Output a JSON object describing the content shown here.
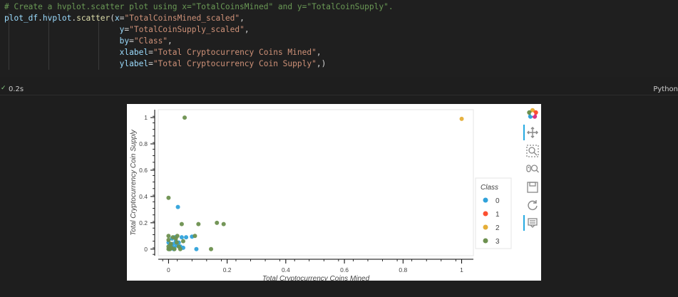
{
  "code": {
    "lines": [
      [
        {
          "t": "# Create a hvplot.scatter plot using x=\"TotalCoinsMined\" and y=\"TotalCoinSupply\".",
          "c": "comment"
        }
      ],
      [
        {
          "t": "plot_df",
          "c": "ident"
        },
        {
          "t": ".",
          "c": "punc"
        },
        {
          "t": "hvplot",
          "c": "ident"
        },
        {
          "t": ".",
          "c": "punc"
        },
        {
          "t": "scatter",
          "c": "fn"
        },
        {
          "t": "(",
          "c": "punc"
        },
        {
          "t": "x",
          "c": "kw"
        },
        {
          "t": "=",
          "c": "punc"
        },
        {
          "t": "\"TotalCoinsMined_scaled\"",
          "c": "str"
        },
        {
          "t": ",",
          "c": "punc"
        }
      ],
      [
        {
          "t": "                        ",
          "c": "punc"
        },
        {
          "t": "y",
          "c": "kw"
        },
        {
          "t": "=",
          "c": "punc"
        },
        {
          "t": "\"TotalCoinSupply_scaled\"",
          "c": "str"
        },
        {
          "t": ",",
          "c": "punc"
        }
      ],
      [
        {
          "t": "                        ",
          "c": "punc"
        },
        {
          "t": "by",
          "c": "kw"
        },
        {
          "t": "=",
          "c": "punc"
        },
        {
          "t": "\"Class\"",
          "c": "str"
        },
        {
          "t": ",",
          "c": "punc"
        }
      ],
      [
        {
          "t": "                        ",
          "c": "punc"
        },
        {
          "t": "xlabel",
          "c": "kw"
        },
        {
          "t": "=",
          "c": "punc"
        },
        {
          "t": "\"Total Cryptocurrency Coins Mined\"",
          "c": "str"
        },
        {
          "t": ",",
          "c": "punc"
        }
      ],
      [
        {
          "t": "                        ",
          "c": "punc"
        },
        {
          "t": "ylabel",
          "c": "kw"
        },
        {
          "t": "=",
          "c": "punc"
        },
        {
          "t": "\"Total Cryptocurrency Coin Supply\"",
          "c": "str"
        },
        {
          "t": ",)",
          "c": "punc"
        }
      ]
    ]
  },
  "cell_status": {
    "check_icon": "✓",
    "time": "0.2s",
    "language": "Python"
  },
  "toolbar": {
    "tools": [
      "bokeh-logo",
      "pan",
      "box-zoom",
      "wheel-zoom",
      "save",
      "reset",
      "hover"
    ]
  },
  "chart_data": {
    "type": "scatter",
    "title": "",
    "xlabel": "Total Cryptocurrency Coins Mined",
    "ylabel": "Total Cryptocurrency Coin Supply",
    "xlim": [
      -0.035,
      1.04
    ],
    "ylim": [
      -0.05,
      1.06
    ],
    "xticks": [
      0,
      0.2,
      0.4,
      0.6,
      0.8,
      1
    ],
    "xtick_labels": [
      "0",
      "0.2",
      "0.4",
      "0.6",
      "0.8",
      "1"
    ],
    "yticks": [
      0,
      0.2,
      0.4,
      0.6,
      0.8,
      1
    ],
    "ytick_labels": [
      "0",
      "0.2",
      "0.4",
      "0.6",
      "0.8",
      "1"
    ],
    "grid": false,
    "legend": {
      "title": "Class",
      "placement": "right"
    },
    "series": [
      {
        "name": "0",
        "color": "#30a2da",
        "points": [
          [
            0.032,
            0.32
          ],
          [
            0.0,
            0.05
          ],
          [
            0.005,
            0.03
          ],
          [
            0.01,
            0.02
          ],
          [
            0.015,
            0.04
          ],
          [
            0.02,
            0.01
          ],
          [
            0.025,
            0.06
          ],
          [
            0.028,
            0.03
          ],
          [
            0.035,
            0.05
          ],
          [
            0.045,
            0.09
          ],
          [
            0.06,
            0.09
          ],
          [
            0.08,
            0.095
          ],
          [
            0.095,
            0.0
          ],
          [
            0.012,
            0.08
          ],
          [
            0.018,
            0.0
          ],
          [
            0.04,
            0.02
          ],
          [
            0.05,
            0.01
          ],
          [
            0.003,
            0.0
          ],
          [
            0.022,
            0.09
          ]
        ]
      },
      {
        "name": "1",
        "color": "#fc4f30",
        "points": []
      },
      {
        "name": "2",
        "color": "#e5ae38",
        "points": [
          [
            1.0,
            0.99
          ]
        ]
      },
      {
        "name": "3",
        "color": "#6d904f",
        "points": [
          [
            0.055,
            1.0
          ],
          [
            0.0,
            0.39
          ],
          [
            0.0,
            0.1
          ],
          [
            0.0,
            0.07
          ],
          [
            0.0,
            0.02
          ],
          [
            0.0,
            0.0
          ],
          [
            0.005,
            0.0
          ],
          [
            0.01,
            0.01
          ],
          [
            0.015,
            0.09
          ],
          [
            0.02,
            0.0
          ],
          [
            0.025,
            0.08
          ],
          [
            0.03,
            0.1
          ],
          [
            0.035,
            0.02
          ],
          [
            0.04,
            0.0
          ],
          [
            0.045,
            0.19
          ],
          [
            0.05,
            0.06
          ],
          [
            0.09,
            0.1
          ],
          [
            0.102,
            0.19
          ],
          [
            0.145,
            0.0
          ],
          [
            0.165,
            0.2
          ],
          [
            0.188,
            0.19
          ],
          [
            0.008,
            0.04
          ],
          [
            0.028,
            0.05
          ]
        ]
      }
    ]
  }
}
